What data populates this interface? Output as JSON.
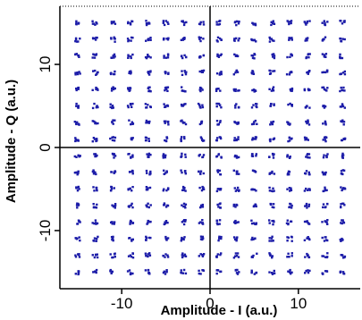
{
  "chart_data": {
    "type": "scatter",
    "title": "",
    "xlabel": "Amplitude - I (a.u.)",
    "ylabel": "Amplitude - Q (a.u.)",
    "xlim": [
      -17,
      17
    ],
    "ylim": [
      -17,
      17
    ],
    "x_ticks": [
      -10,
      0,
      10
    ],
    "y_ticks": [
      10,
      0,
      -10
    ],
    "x_tick_labels": [
      "-10",
      "0",
      "10"
    ],
    "y_tick_labels": [
      "10",
      "0",
      "-10"
    ],
    "grid": false,
    "legend": "none",
    "constellation": "256-QAM",
    "levels": [
      -15,
      -13,
      -11,
      -9,
      -7,
      -5,
      -3,
      -1,
      1,
      3,
      5,
      7,
      9,
      11,
      13,
      15
    ],
    "crosshair_at": [
      0,
      0
    ],
    "point_color": "#1c1ca8",
    "axis_color": "#000000"
  }
}
